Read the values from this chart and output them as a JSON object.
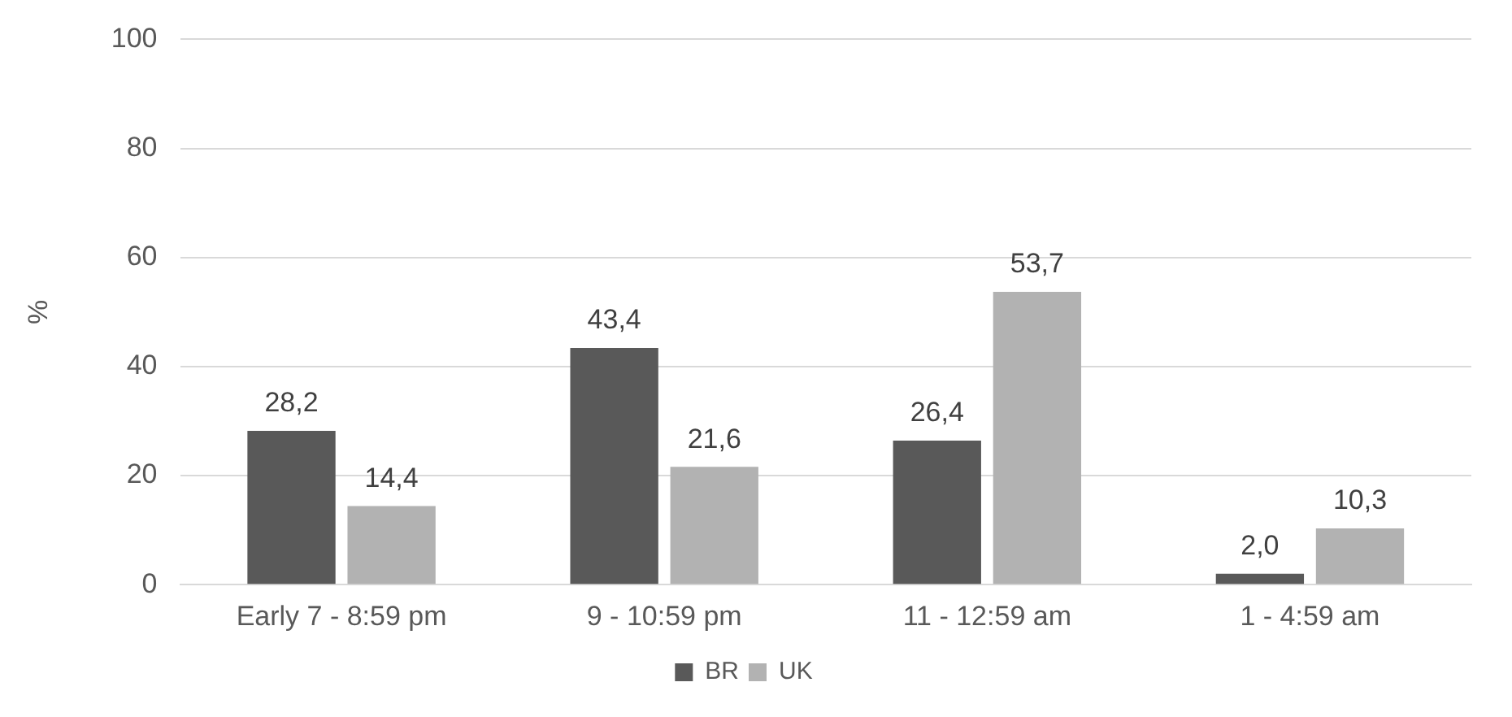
{
  "chart_data": {
    "type": "bar",
    "ylabel": "%",
    "categories": [
      "Early 7 - 8:59 pm",
      "9 - 10:59 pm",
      "11 - 12:59 am",
      "1 - 4:59 am"
    ],
    "series": [
      {
        "name": "BR",
        "color": "#595959",
        "values": [
          28.2,
          43.4,
          26.4,
          2.0
        ],
        "value_labels": [
          "28,2",
          "43,4",
          "26,4",
          "2,0"
        ]
      },
      {
        "name": "UK",
        "color": "#b2b2b2",
        "values": [
          14.4,
          21.6,
          53.7,
          10.3
        ],
        "value_labels": [
          "14,4",
          "21,6",
          "53,7",
          "10,3"
        ]
      }
    ],
    "ylim": [
      0,
      100
    ],
    "yticks": [
      0,
      20,
      40,
      60,
      80,
      100
    ],
    "grid": "y",
    "legend": "bottom"
  }
}
